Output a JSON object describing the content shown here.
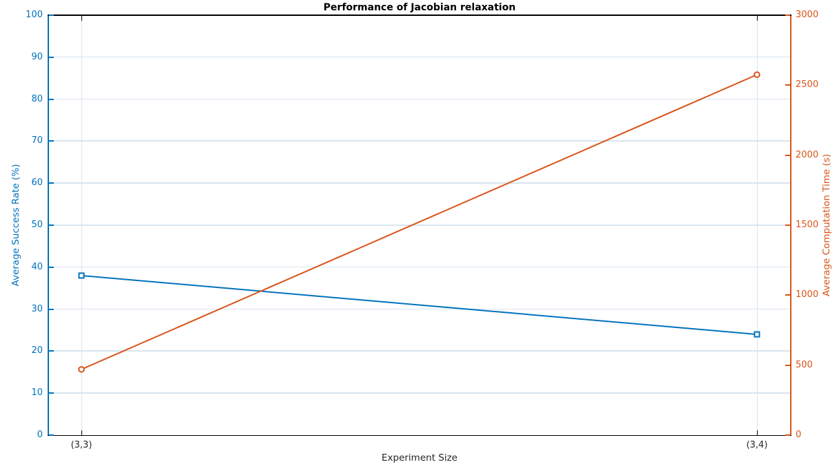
{
  "chart_data": {
    "type": "line",
    "title": "Performance of Jacobian relaxation",
    "title_color": "#000000",
    "xlabel": "Experiment Size",
    "categories": [
      "(3,3)",
      "(3,4)"
    ],
    "series": [
      {
        "name": "Average Success Rate (%)",
        "axis": "left",
        "color": "#0072bd",
        "marker": "square",
        "values": [
          38,
          24
        ]
      },
      {
        "name": "Average Computation Time (s)",
        "axis": "right",
        "color": "#d95319",
        "marker": "circle",
        "values": [
          470,
          2575
        ]
      }
    ],
    "left_axis": {
      "label": "Average Success Rate (%)",
      "color": "#0072bd",
      "min": 0,
      "max": 100,
      "ticks": [
        0,
        10,
        20,
        30,
        40,
        50,
        60,
        70,
        80,
        90,
        100
      ]
    },
    "right_axis": {
      "label": "Average Computation Time (s)",
      "color": "#d95319",
      "min": 0,
      "max": 3000,
      "ticks": [
        0,
        500,
        1000,
        1500,
        2000,
        2500,
        3000
      ]
    },
    "x_axis": {
      "color": "#000000",
      "tick_label_color": "#262626"
    },
    "grid": {
      "horizontal": true,
      "vertical": true,
      "horizontal_color": "#d8e5f0",
      "vertical_color": "#dee2e5"
    },
    "legend": "none"
  }
}
